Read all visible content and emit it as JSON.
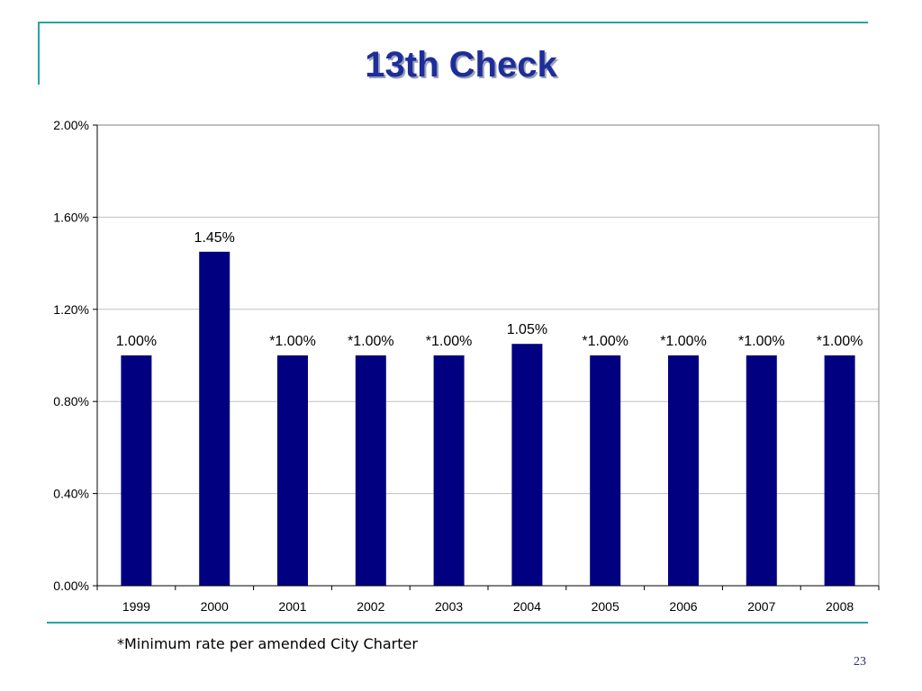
{
  "slide": {
    "title": "13th Check",
    "footnote": "*Minimum rate per amended City Charter",
    "page_number": "23"
  },
  "colors": {
    "accent_line": "#2aa3a7",
    "title": "#1f2d9a",
    "bar": "#000080",
    "grid": "#c0c0c0"
  },
  "chart_data": {
    "type": "bar",
    "title": "",
    "xlabel": "",
    "ylabel": "",
    "categories": [
      "1999",
      "2000",
      "2001",
      "2002",
      "2003",
      "2004",
      "2005",
      "2006",
      "2007",
      "2008"
    ],
    "values": [
      1.0,
      1.45,
      1.0,
      1.0,
      1.0,
      1.05,
      1.0,
      1.0,
      1.0,
      1.0
    ],
    "data_labels": [
      "1.00%",
      "1.45%",
      "*1.00%",
      "*1.00%",
      "*1.00%",
      "1.05%",
      "*1.00%",
      "*1.00%",
      "*1.00%",
      "*1.00%"
    ],
    "ylim": [
      0,
      2.0
    ],
    "yticks": [
      0,
      0.4,
      0.8,
      1.2,
      1.6,
      2.0
    ],
    "ytick_labels": [
      "0.00%",
      "0.40%",
      "0.80%",
      "1.20%",
      "1.60%",
      "2.00%"
    ],
    "grid": true,
    "legend": "none"
  }
}
